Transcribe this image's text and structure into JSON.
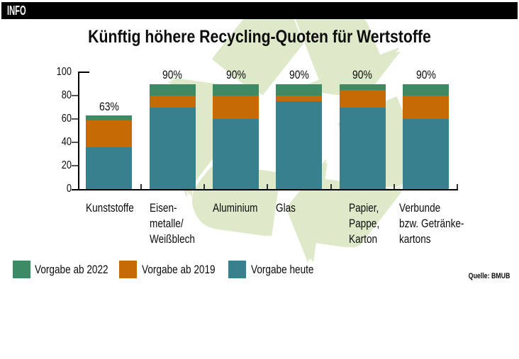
{
  "info_label": "INFO",
  "title": "Künftig höhere Recycling-Quoten für Wertstoffe",
  "source": "Quelle: BMUB",
  "colors": {
    "vorgabe_ab_2022": "#3d8b66",
    "vorgabe_ab_2019": "#c56a04",
    "vorgabe_heute": "#37818f",
    "watermark_green": "#dee9ca",
    "axis": "#000000",
    "tick_gray": "#555555"
  },
  "watermark_icon": "recycling-symbol",
  "chart_data": {
    "type": "bar",
    "stacked": true,
    "title": "Künftig höhere Recycling-Quoten für Wertstoffe",
    "categories": [
      [
        "Kunststoffe"
      ],
      [
        "Eisen-",
        "metalle/",
        "Weißblech"
      ],
      [
        "Aluminium"
      ],
      [
        "Glas"
      ],
      [
        "Papier,",
        "Pappe,",
        "Karton"
      ],
      [
        "Verbunde",
        "bzw. Getränke-",
        "kartons"
      ]
    ],
    "series": [
      {
        "name": "Vorgabe heute",
        "color": "#37818f",
        "cumulative_values": [
          36,
          70,
          60,
          75,
          70,
          60
        ]
      },
      {
        "name": "Vorgabe ab 2019",
        "color": "#c56a04",
        "cumulative_values": [
          58.5,
          80,
          80,
          80,
          85,
          80
        ]
      },
      {
        "name": "Vorgabe ab 2022",
        "color": "#3d8b66",
        "cumulative_values": [
          63,
          90,
          90,
          90,
          90,
          90
        ]
      }
    ],
    "bar_labels": [
      "63%",
      "90%",
      "90%",
      "90%",
      "90%",
      "90%"
    ],
    "ylabel": "",
    "xlabel": "",
    "ylim": [
      0,
      100
    ],
    "yticks": [
      0,
      20,
      40,
      60,
      80,
      100
    ],
    "grid": false,
    "legend_position": "bottom",
    "legend": [
      {
        "label": "Vorgabe ab 2022",
        "color": "#3d8b66"
      },
      {
        "label": "Vorgabe ab 2019",
        "color": "#c56a04"
      },
      {
        "label": "Vorgabe heute",
        "color": "#37818f"
      }
    ]
  }
}
